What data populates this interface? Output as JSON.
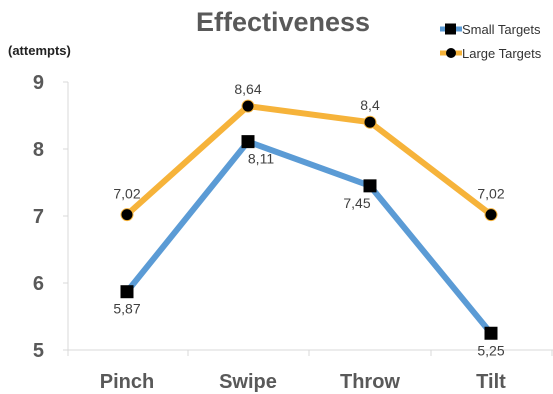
{
  "chart_data": {
    "type": "line",
    "title": "Effectiveness",
    "ylabel": "(attempts)",
    "xlabel": "",
    "categories": [
      "Pinch",
      "Swipe",
      "Throw",
      "Tilt"
    ],
    "ylim": [
      5,
      9
    ],
    "yticks": [
      5,
      6,
      7,
      8,
      9
    ],
    "grid": false,
    "legend_position": "top-right",
    "series": [
      {
        "name": "Small Targets",
        "values": [
          5.87,
          8.11,
          7.45,
          5.25
        ],
        "labels": [
          "5,87",
          "8,11",
          "7,45",
          "5,25"
        ],
        "color": "#5B9BD5",
        "marker": "square"
      },
      {
        "name": "Large Targets",
        "values": [
          7.02,
          8.64,
          8.4,
          7.02
        ],
        "labels": [
          "7,02",
          "8,64",
          "8,4",
          "7,02"
        ],
        "color": "#F6B33A",
        "marker": "circle"
      }
    ]
  }
}
